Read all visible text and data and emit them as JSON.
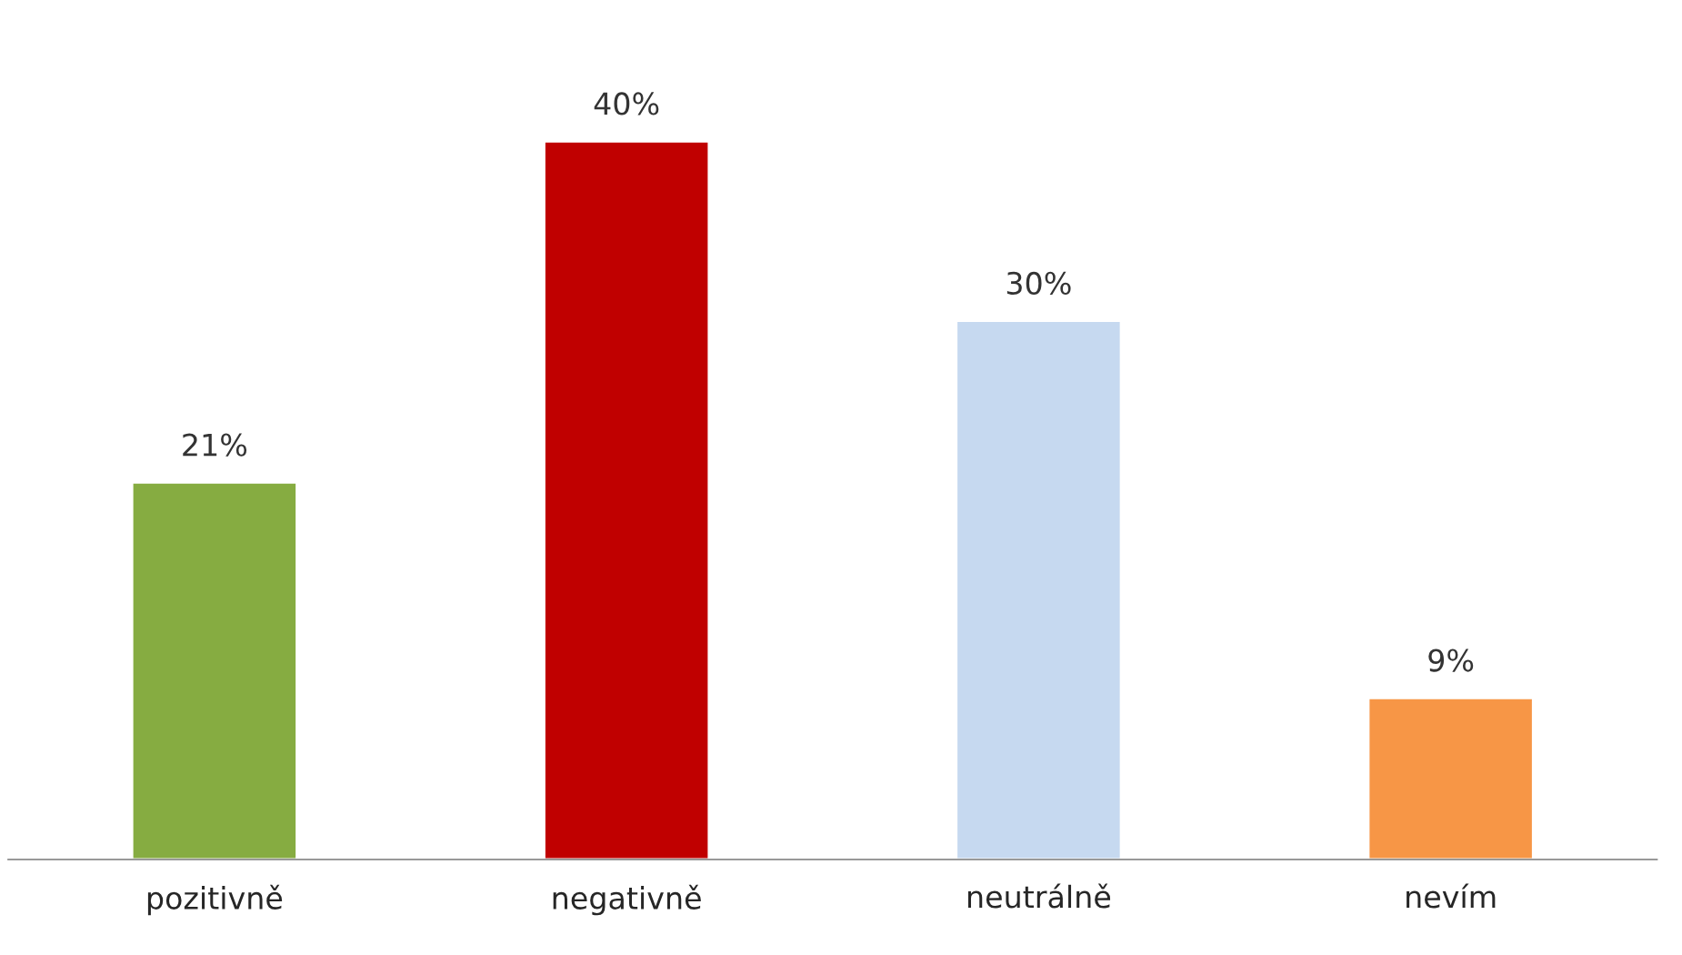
{
  "chart_data": {
    "type": "bar",
    "categories": [
      "pozitivně",
      "negativně",
      "neutrálně",
      "nevím"
    ],
    "values": [
      21,
      40,
      30,
      9
    ],
    "colors": [
      "#86ac41",
      "#c00000",
      "#c6d9f0",
      "#f79646"
    ],
    "value_labels": [
      "21%",
      "40%",
      "30%",
      "9%"
    ],
    "grid": false,
    "legend": false
  }
}
